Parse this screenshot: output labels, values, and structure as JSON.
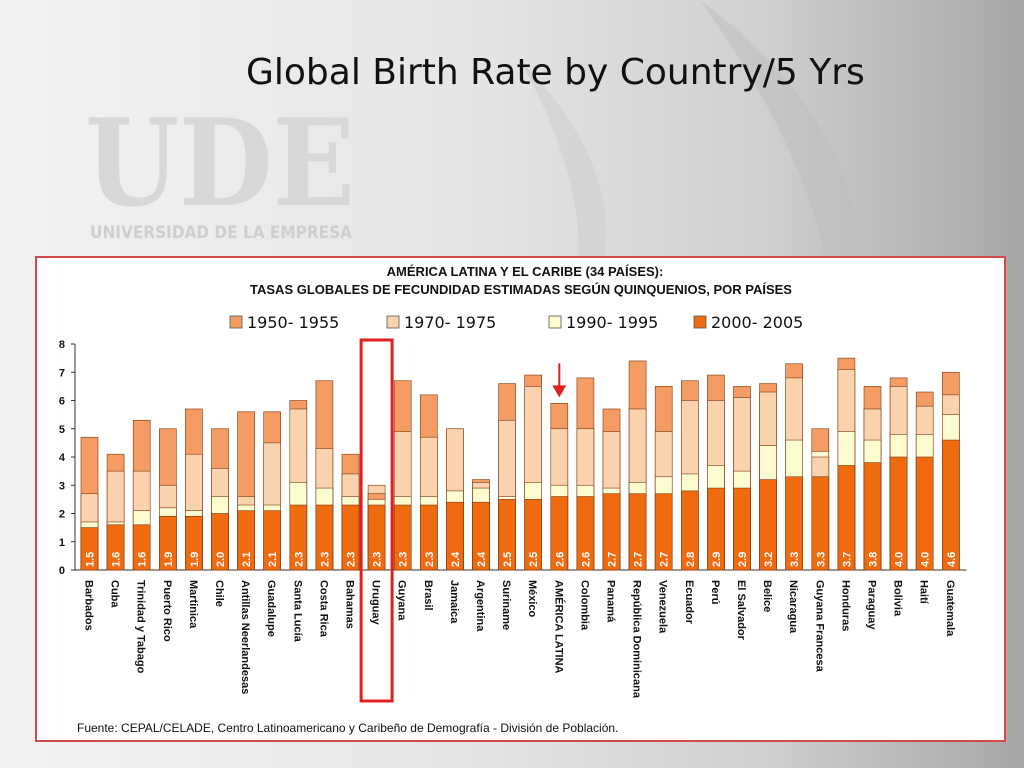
{
  "slide": {
    "title": "Global Birth Rate by Country/5 Yrs"
  },
  "logo": {
    "mark": "UDE",
    "name": "UNIVERSIDAD DE LA EMPRESA"
  },
  "colors": {
    "s1950": "#f59b64",
    "s1970": "#fbd2ae",
    "s1990": "#fdfbd0",
    "s2000": "#f06a10",
    "highlight": "#e02020",
    "box_border": "#d24a4a"
  },
  "chart_data": {
    "type": "bar",
    "title": "AMÉRICA LATINA  Y EL CARIBE (34 PAÍSES):",
    "subtitle": "TASAS GLOBALES DE FECUNDIDAD ESTIMADAS SEGÚN QUINQUENIOS, POR PAÍSES",
    "source": "Fuente: CEPAL/CELADE, Centro Latinoamericano y Caribeño de Demografía - División de Población.",
    "ylim": [
      0,
      8
    ],
    "yticks": [
      "0",
      "1",
      "2",
      "3",
      "4",
      "5",
      "6",
      "7",
      "8"
    ],
    "grid": false,
    "legend_position": "top",
    "highlighted_category": "Uruguay",
    "arrow_category": "AMÉRICA LATINA",
    "categories": [
      "Barbados",
      "Cuba",
      "Trinidad y Tabago",
      "Puerto Rico",
      "Martinica",
      "Chile",
      "Antillas Neerlandesas",
      "Guadalupe",
      "Santa Lucía",
      "Costa Rica",
      "Bahamas",
      "Uruguay",
      "Guyana",
      "Brasil",
      "Jamaica",
      "Argentina",
      "Suriname",
      "México",
      "AMÉRICA LATINA",
      "Colombia",
      "Panamá",
      "República Dominicana",
      "Venezuela",
      "Ecuador",
      "Perú",
      "El Salvador",
      "Belice",
      "Nicaragua",
      "Guyana Francesa",
      "Honduras",
      "Paraguay",
      "Bolivia",
      "Haití",
      "Guatemala"
    ],
    "value_labels": [
      "1.5",
      "1.6",
      "1.6",
      "1.9",
      "1.9",
      "2.0",
      "2.1",
      "2.1",
      "2.3",
      "2.3",
      "2.3",
      "2.3",
      "2.3",
      "2.3",
      "2.4",
      "2.4",
      "2.5",
      "2.5",
      "2.6",
      "2.6",
      "2.7",
      "2.7",
      "2.7",
      "2.8",
      "2.9",
      "2.9",
      "3.2",
      "3.3",
      "3.3",
      "3.7",
      "3.8",
      "4.0",
      "4.0",
      "4.6"
    ],
    "series": [
      {
        "name": "1950- 1955",
        "values": [
          4.7,
          4.1,
          5.3,
          5.0,
          5.7,
          5.0,
          5.6,
          5.6,
          6.0,
          6.7,
          4.1,
          2.7,
          6.7,
          6.2,
          5.0,
          3.2,
          6.6,
          6.9,
          5.9,
          6.8,
          5.7,
          7.4,
          6.5,
          6.7,
          6.9,
          6.5,
          6.6,
          7.3,
          5.0,
          7.5,
          6.5,
          6.8,
          6.3,
          7.0
        ]
      },
      {
        "name": "1970- 1975",
        "values": [
          2.7,
          3.5,
          3.5,
          3.0,
          4.1,
          3.6,
          2.6,
          4.5,
          5.7,
          4.3,
          3.4,
          3.0,
          4.9,
          4.7,
          5.0,
          3.1,
          5.3,
          6.5,
          5.0,
          5.0,
          4.9,
          5.7,
          4.9,
          6.0,
          6.0,
          6.1,
          6.3,
          6.8,
          4.0,
          7.1,
          5.7,
          6.5,
          5.8,
          6.2
        ]
      },
      {
        "name": "1990- 1995",
        "values": [
          1.7,
          1.7,
          2.1,
          2.2,
          2.1,
          2.6,
          2.3,
          2.3,
          3.1,
          2.9,
          2.6,
          2.5,
          2.6,
          2.6,
          2.8,
          2.9,
          2.6,
          3.1,
          3.0,
          3.0,
          2.9,
          3.1,
          3.3,
          3.4,
          3.7,
          3.5,
          4.4,
          4.6,
          4.2,
          4.9,
          4.6,
          4.8,
          4.8,
          5.5
        ]
      },
      {
        "name": "2000- 2005",
        "values": [
          1.5,
          1.6,
          1.6,
          1.9,
          1.9,
          2.0,
          2.1,
          2.1,
          2.3,
          2.3,
          2.3,
          2.3,
          2.3,
          2.3,
          2.4,
          2.4,
          2.5,
          2.5,
          2.6,
          2.6,
          2.7,
          2.7,
          2.7,
          2.8,
          2.9,
          2.9,
          3.2,
          3.3,
          3.3,
          3.7,
          3.8,
          4.0,
          4.0,
          4.6
        ]
      }
    ]
  }
}
